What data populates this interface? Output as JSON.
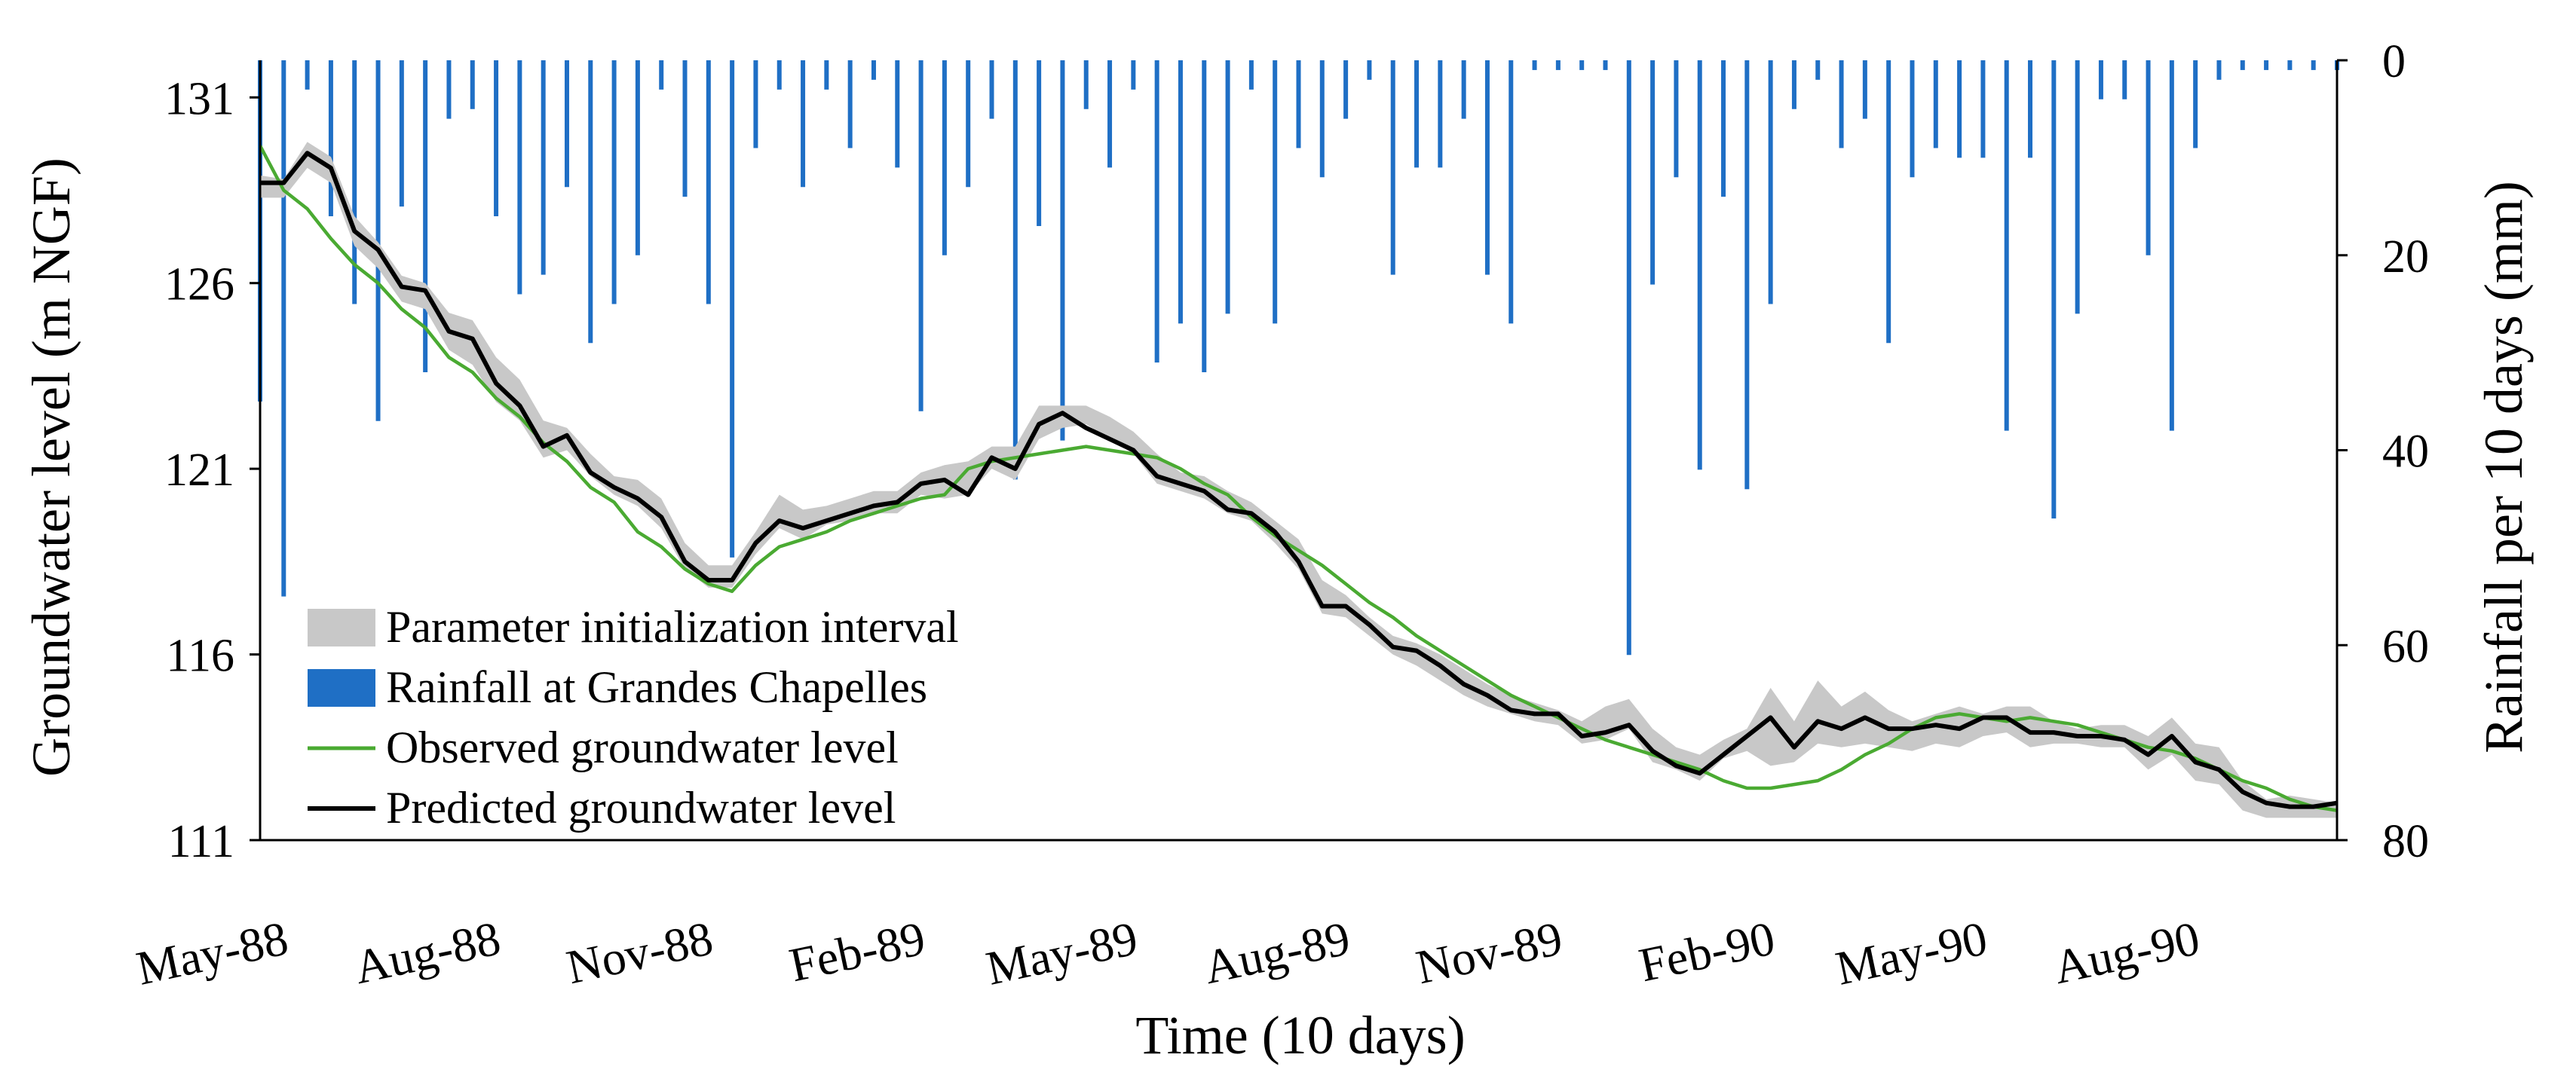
{
  "chart_data": {
    "type": "line",
    "title": "",
    "xlabel": "Time (10 days)",
    "ylabel_left": "Groundwater level (m NGF)",
    "ylabel_right": "Rainfall per 10 days (mm)",
    "y_left_ticks": [
      "111",
      "116",
      "121",
      "126",
      "131"
    ],
    "y_left_lim": [
      111,
      132
    ],
    "y_right_ticks": [
      "0",
      "20",
      "40",
      "60",
      "80"
    ],
    "y_right_lim": [
      0,
      80
    ],
    "x_ticks": [
      "May-88",
      "Aug-88",
      "Nov-88",
      "Feb-89",
      "May-89",
      "Aug-89",
      "Nov-89",
      "Feb-90",
      "May-90",
      "Aug-90"
    ],
    "x_step_count": 88,
    "legend": [
      "Parameter initialization interval",
      "Rainfall at Grandes Chapelles",
      "Observed groundwater level",
      "Predicted groundwater level"
    ],
    "colors": {
      "observed": "#4aaa32",
      "predicted": "#000000",
      "interval": "#c8c8c8",
      "rainfall": "#1f6fc5"
    },
    "series": [
      {
        "name": "Observed groundwater level",
        "values": [
          129.7,
          128.5,
          128.0,
          127.2,
          126.5,
          126.0,
          125.3,
          124.8,
          124.0,
          123.6,
          122.9,
          122.4,
          121.7,
          121.2,
          120.5,
          120.1,
          119.3,
          118.9,
          118.3,
          117.9,
          117.7,
          118.4,
          118.9,
          119.1,
          119.3,
          119.6,
          119.8,
          120.0,
          120.2,
          120.3,
          121.0,
          121.2,
          121.3,
          121.4,
          121.5,
          121.6,
          121.5,
          121.4,
          121.3,
          121.0,
          120.6,
          120.3,
          119.7,
          119.2,
          118.8,
          118.4,
          117.9,
          117.4,
          117.0,
          116.5,
          116.1,
          115.7,
          115.3,
          114.9,
          114.6,
          114.3,
          114.0,
          113.7,
          113.5,
          113.3,
          113.1,
          112.9,
          112.6,
          112.4,
          112.4,
          112.5,
          112.6,
          112.9,
          113.3,
          113.6,
          114.0,
          114.3,
          114.4,
          114.3,
          114.2,
          114.3,
          114.2,
          114.1,
          113.9,
          113.7,
          113.5,
          113.4,
          113.2,
          112.9,
          112.6,
          112.4,
          112.1,
          111.9,
          111.8
        ],
        "interval_lower": [
          128.3,
          128.3,
          129.1,
          128.7,
          127.0,
          126.4,
          125.5,
          125.3,
          124.2,
          123.8,
          122.8,
          122.3,
          121.3,
          121.5,
          120.8,
          120.3,
          120.0,
          119.4,
          118.3,
          117.8,
          117.8,
          118.7,
          119.4,
          119.1,
          119.5,
          119.6,
          119.8,
          119.8,
          120.3,
          120.2,
          120.3,
          121.0,
          120.7,
          121.8,
          122.1,
          122.2,
          121.8,
          121.4,
          120.6,
          120.4,
          120.2,
          119.8,
          119.6,
          119.0,
          118.3,
          117.1,
          117.0,
          116.5,
          116.0,
          115.7,
          115.3,
          114.9,
          114.6,
          114.4,
          114.2,
          114.1,
          113.6,
          113.7,
          114.0,
          113.1,
          112.9,
          112.6,
          113.2,
          113.4,
          113.0,
          113.1,
          113.6,
          113.5,
          113.6,
          113.5,
          113.4,
          113.6,
          113.5,
          113.8,
          113.9,
          113.5,
          113.6,
          113.6,
          113.5,
          113.5,
          112.9,
          113.3,
          112.6,
          112.5,
          111.8,
          111.6,
          111.6,
          111.6,
          111.6
        ],
        "interval_upper": [
          128.9,
          128.8,
          129.8,
          129.4,
          127.8,
          127.1,
          126.2,
          126.0,
          125.2,
          125.0,
          124.0,
          123.4,
          122.3,
          122.1,
          121.4,
          120.8,
          120.7,
          120.2,
          119.0,
          118.4,
          118.4,
          119.3,
          120.3,
          119.9,
          120.0,
          120.2,
          120.4,
          120.4,
          120.9,
          121.1,
          121.2,
          121.6,
          121.6,
          122.7,
          122.7,
          122.7,
          122.4,
          122.0,
          121.4,
          120.9,
          120.8,
          120.4,
          120.1,
          119.6,
          119.1,
          118.0,
          117.6,
          117.0,
          116.5,
          116.3,
          116.0,
          115.6,
          115.2,
          114.9,
          114.7,
          114.5,
          114.2,
          114.6,
          114.8,
          114.0,
          113.5,
          113.3,
          113.7,
          114.0,
          115.1,
          114.2,
          115.3,
          114.6,
          115.0,
          114.5,
          114.2,
          114.4,
          114.6,
          114.4,
          114.6,
          114.6,
          114.2,
          114.0,
          114.1,
          114.1,
          113.8,
          114.3,
          113.6,
          113.5,
          112.6,
          112.1,
          112.2,
          112.1,
          112.0
        ]
      },
      {
        "name": "Predicted groundwater level",
        "values": [
          128.7,
          128.7,
          129.5,
          129.1,
          127.4,
          126.9,
          125.9,
          125.8,
          124.7,
          124.5,
          123.3,
          122.7,
          121.6,
          121.9,
          120.9,
          120.5,
          120.2,
          119.7,
          118.5,
          118.0,
          118.0,
          119.0,
          119.6,
          119.4,
          119.6,
          119.8,
          120.0,
          120.1,
          120.6,
          120.7,
          120.3,
          121.3,
          121.0,
          122.2,
          122.5,
          122.1,
          121.8,
          121.5,
          120.8,
          120.6,
          120.4,
          119.9,
          119.8,
          119.3,
          118.5,
          117.3,
          117.3,
          116.8,
          116.2,
          116.1,
          115.7,
          115.2,
          114.9,
          114.5,
          114.4,
          114.4,
          113.8,
          113.9,
          114.1,
          113.4,
          113.0,
          112.8,
          113.3,
          113.8,
          114.3,
          113.5,
          114.2,
          114.0,
          114.3,
          114.0,
          114.0,
          114.1,
          114.0,
          114.3,
          114.3,
          113.9,
          113.9,
          113.8,
          113.8,
          113.7,
          113.3,
          113.8,
          113.1,
          112.9,
          112.3,
          112.0,
          111.9,
          111.9,
          112.0
        ]
      }
    ],
    "rainfall_series": {
      "name": "Rainfall at Grandes Chapelles",
      "values": [
        35,
        55,
        3,
        16,
        25,
        37,
        15,
        32,
        6,
        5,
        16,
        24,
        22,
        13,
        29,
        25,
        20,
        3,
        14,
        25,
        51,
        9,
        3,
        13,
        3,
        9,
        2,
        11,
        36,
        20,
        13,
        6,
        43,
        17,
        39,
        5,
        11,
        3,
        31,
        27,
        32,
        26,
        3,
        27,
        9,
        12,
        6,
        2,
        22,
        11,
        11,
        6,
        22,
        27,
        1,
        1,
        1,
        1,
        61,
        23,
        12,
        42,
        14,
        44,
        25,
        5,
        2,
        9,
        6,
        29,
        12,
        9,
        10,
        10,
        38,
        10,
        47,
        26,
        4,
        4,
        20,
        38,
        9,
        2,
        1,
        1,
        1,
        1,
        1
      ]
    }
  }
}
